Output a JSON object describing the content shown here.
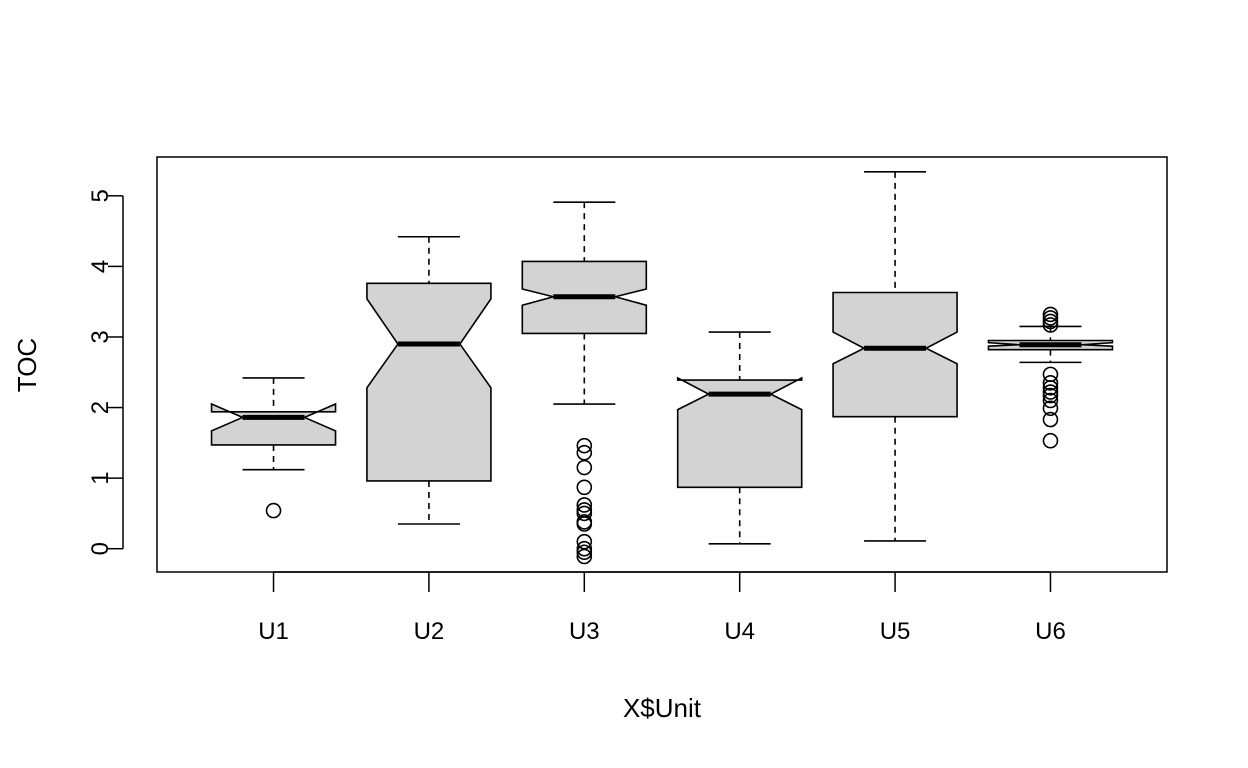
{
  "chart_data": {
    "type": "boxplot",
    "notched": true,
    "xlabel": "X$Unit",
    "ylabel": "TOC",
    "ylim": [
      -0.33,
      5.55
    ],
    "yticks": [
      0,
      1,
      2,
      3,
      4,
      5
    ],
    "box_fill": "#d3d3d3",
    "categories": [
      "U1",
      "U2",
      "U3",
      "U4",
      "U5",
      "U6"
    ],
    "boxes": [
      {
        "name": "U1",
        "whisker_low": 1.12,
        "q1": 1.47,
        "median": 1.86,
        "q3": 1.94,
        "whisker_high": 2.42,
        "notch_low": 1.67,
        "notch_high": 2.05,
        "outliers": [
          0.54
        ]
      },
      {
        "name": "U2",
        "whisker_low": 0.35,
        "q1": 0.96,
        "median": 2.9,
        "q3": 3.76,
        "whisker_high": 4.42,
        "notch_low": 2.28,
        "notch_high": 3.54,
        "outliers": []
      },
      {
        "name": "U3",
        "whisker_low": 2.05,
        "q1": 3.05,
        "median": 3.57,
        "q3": 4.07,
        "whisker_high": 4.91,
        "notch_low": 3.45,
        "notch_high": 3.68,
        "outliers": [
          1.46,
          1.36,
          1.15,
          0.87,
          0.62,
          0.55,
          0.5,
          0.38,
          0.35,
          0.1,
          0.0,
          -0.05,
          -0.11
        ]
      },
      {
        "name": "U4",
        "whisker_low": 0.07,
        "q1": 0.87,
        "median": 2.19,
        "q3": 2.39,
        "whisker_high": 3.07,
        "notch_low": 1.97,
        "notch_high": 2.42,
        "outliers": []
      },
      {
        "name": "U5",
        "whisker_low": 0.11,
        "q1": 1.87,
        "median": 2.84,
        "q3": 3.63,
        "whisker_high": 5.34,
        "notch_low": 2.62,
        "notch_high": 3.07,
        "outliers": []
      },
      {
        "name": "U6",
        "whisker_low": 2.64,
        "q1": 2.82,
        "median": 2.89,
        "q3": 2.95,
        "whisker_high": 3.15,
        "notch_low": 2.87,
        "notch_high": 2.92,
        "outliers": [
          3.32,
          3.27,
          3.22,
          3.17,
          2.47,
          2.35,
          2.28,
          2.22,
          2.17,
          2.1,
          1.99,
          1.83,
          1.53
        ]
      }
    ]
  }
}
